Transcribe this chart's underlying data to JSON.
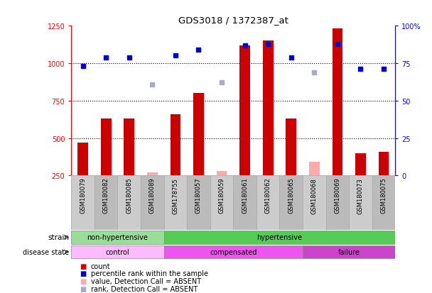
{
  "title": "GDS3018 / 1372387_at",
  "samples": [
    "GSM180079",
    "GSM180082",
    "GSM180085",
    "GSM180089",
    "GSM178755",
    "GSM180057",
    "GSM180059",
    "GSM180061",
    "GSM180062",
    "GSM180065",
    "GSM180068",
    "GSM180069",
    "GSM180073",
    "GSM180075"
  ],
  "bar_values": [
    470,
    630,
    630,
    null,
    660,
    800,
    null,
    1120,
    1150,
    630,
    null,
    1230,
    400,
    410
  ],
  "bar_absent_values": [
    null,
    null,
    null,
    270,
    null,
    null,
    280,
    null,
    null,
    null,
    340,
    null,
    null,
    null
  ],
  "dot_values": [
    980,
    1040,
    1040,
    null,
    1050,
    1090,
    null,
    1120,
    1130,
    1040,
    null,
    1130,
    960,
    960
  ],
  "dot_absent_values": [
    null,
    null,
    null,
    860,
    null,
    null,
    870,
    null,
    null,
    null,
    940,
    null,
    null,
    null
  ],
  "bar_color": "#cc0000",
  "bar_absent_color": "#ffaaaa",
  "dot_color": "#0000cc",
  "dot_absent_color": "#aaaacc",
  "ylim_left": [
    250,
    1250
  ],
  "ylim_right": [
    0,
    100
  ],
  "yticks_left": [
    250,
    500,
    750,
    1000,
    1250
  ],
  "yticks_right": [
    0,
    25,
    50,
    75,
    100
  ],
  "grid_values": [
    500,
    750,
    1000
  ],
  "strain_groups": [
    {
      "label": "non-hypertensive",
      "start": 0,
      "end": 4,
      "color": "#99dd99"
    },
    {
      "label": "hypertensive",
      "start": 4,
      "end": 14,
      "color": "#55cc55"
    }
  ],
  "disease_groups": [
    {
      "label": "control",
      "start": 0,
      "end": 4,
      "color": "#ffbbff"
    },
    {
      "label": "compensated",
      "start": 4,
      "end": 10,
      "color": "#ee55ee"
    },
    {
      "label": "failure",
      "start": 10,
      "end": 14,
      "color": "#cc44cc"
    }
  ],
  "bar_width": 0.45,
  "figsize": [
    6.08,
    4.14
  ],
  "dpi": 100
}
